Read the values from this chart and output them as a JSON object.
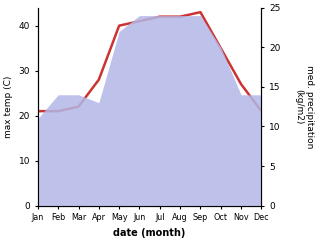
{
  "months": [
    1,
    2,
    3,
    4,
    5,
    6,
    7,
    8,
    9,
    10,
    11,
    12
  ],
  "month_labels": [
    "Jan",
    "Feb",
    "Mar",
    "Apr",
    "May",
    "Jun",
    "Jul",
    "Aug",
    "Sep",
    "Oct",
    "Nov",
    "Dec"
  ],
  "max_temp": [
    21,
    21,
    22,
    28,
    40,
    41,
    42,
    42,
    43,
    35,
    27,
    21
  ],
  "precipitation": [
    11,
    14,
    14,
    13,
    22,
    24,
    24,
    24,
    24,
    20,
    14,
    14
  ],
  "temp_ylim": [
    0,
    44
  ],
  "precip_ylim": [
    0,
    25
  ],
  "temp_color": "#cc3333",
  "precip_fill_color": "#b3b8e8",
  "precip_fill_alpha": 0.85,
  "xlabel": "date (month)",
  "ylabel_left": "max temp (C)",
  "ylabel_right": "med. precipitation\n(kg/m2)",
  "left_yticks": [
    0,
    10,
    20,
    30,
    40
  ],
  "right_yticks": [
    0,
    5,
    10,
    15,
    20,
    25
  ],
  "temp_linewidth": 1.8,
  "background_color": "#ffffff"
}
